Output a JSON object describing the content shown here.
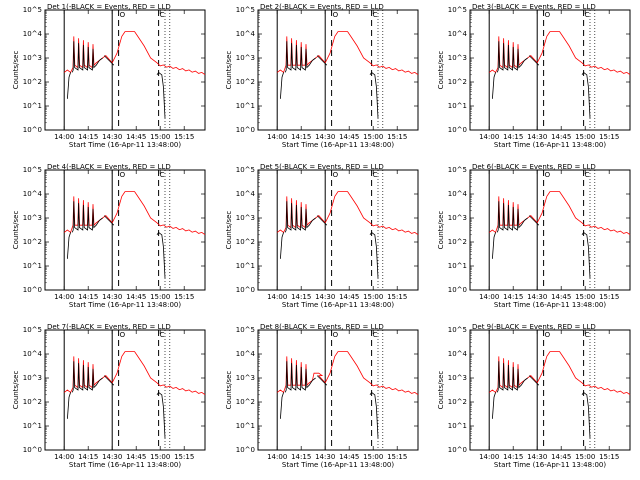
{
  "figure": {
    "ylabel": "Counts/sec",
    "xlabel": "Start Time (16-Apr-11 13:48:00)"
  },
  "chart_data": {
    "type": "line",
    "y_scale": "log",
    "ylim": [
      1,
      100000
    ],
    "y_ticks": [
      "10^0",
      "10^1",
      "10^2",
      "10^3",
      "10^4",
      "10^5"
    ],
    "x_ticks": [
      "14:00",
      "14:15",
      "14:30",
      "14:45",
      "15:00",
      "15:15"
    ],
    "xlim_minutes_after_start": [
      0,
      100
    ],
    "series_colors": {
      "Events": "#000000",
      "LLD": "#ff0000"
    },
    "markers": [
      {
        "label": "O",
        "style": "long-dashed"
      },
      {
        "label": "C",
        "style": "long-dashed"
      }
    ],
    "panels": [
      {
        "title": "Det 1(-BLACK = Events, RED = LLD"
      },
      {
        "title": "Det 2(-BLACK = Events, RED = LLD"
      },
      {
        "title": "Det 3(-BLACK = Events, RED = LLD"
      },
      {
        "title": "Det 4(-BLACK = Events, RED = LLD"
      },
      {
        "title": "Det 5(-BLACK = Events, RED = LLD"
      },
      {
        "title": "Det 6(-BLACK = Events, RED = LLD"
      },
      {
        "title": "Det 7(-BLACK = Events, RED = LLD"
      },
      {
        "title": "Det 8(-BLACK = Events, RED = LLD"
      },
      {
        "title": "Det 9(-BLACK = Events, RED = LLD"
      }
    ]
  }
}
